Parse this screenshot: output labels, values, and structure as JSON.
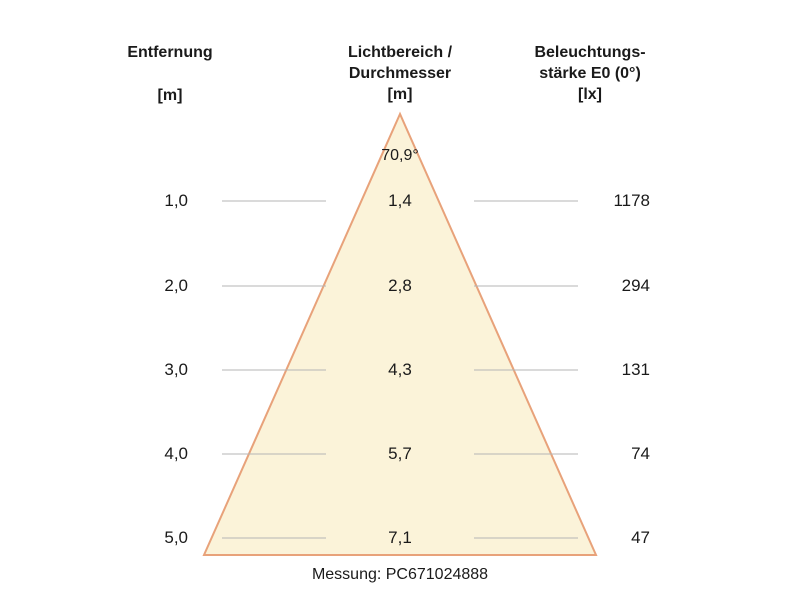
{
  "headers": {
    "distance": [
      "Entfernung",
      "[m]"
    ],
    "diameter": [
      "Lichtbereich /",
      "Durchmesser",
      "[m]"
    ],
    "illuminance": [
      "Beleuchtungs-",
      "stärke E0 (0°)",
      "[lx]"
    ]
  },
  "beam_angle": "70,9°",
  "rows": [
    {
      "distance": "1,0",
      "diameter": "1,4",
      "illuminance": "1178"
    },
    {
      "distance": "2,0",
      "diameter": "2,8",
      "illuminance": "294"
    },
    {
      "distance": "3,0",
      "diameter": "4,3",
      "illuminance": "131"
    },
    {
      "distance": "4,0",
      "diameter": "5,7",
      "illuminance": "74"
    },
    {
      "distance": "5,0",
      "diameter": "7,1",
      "illuminance": "47"
    }
  ],
  "measurement": "Messung: PC671024888",
  "colors": {
    "cone_fill": "#fbf3d9",
    "cone_edge": "#e8a27a",
    "guide_line": "#b5b5b5",
    "text": "#1a1a1a"
  }
}
